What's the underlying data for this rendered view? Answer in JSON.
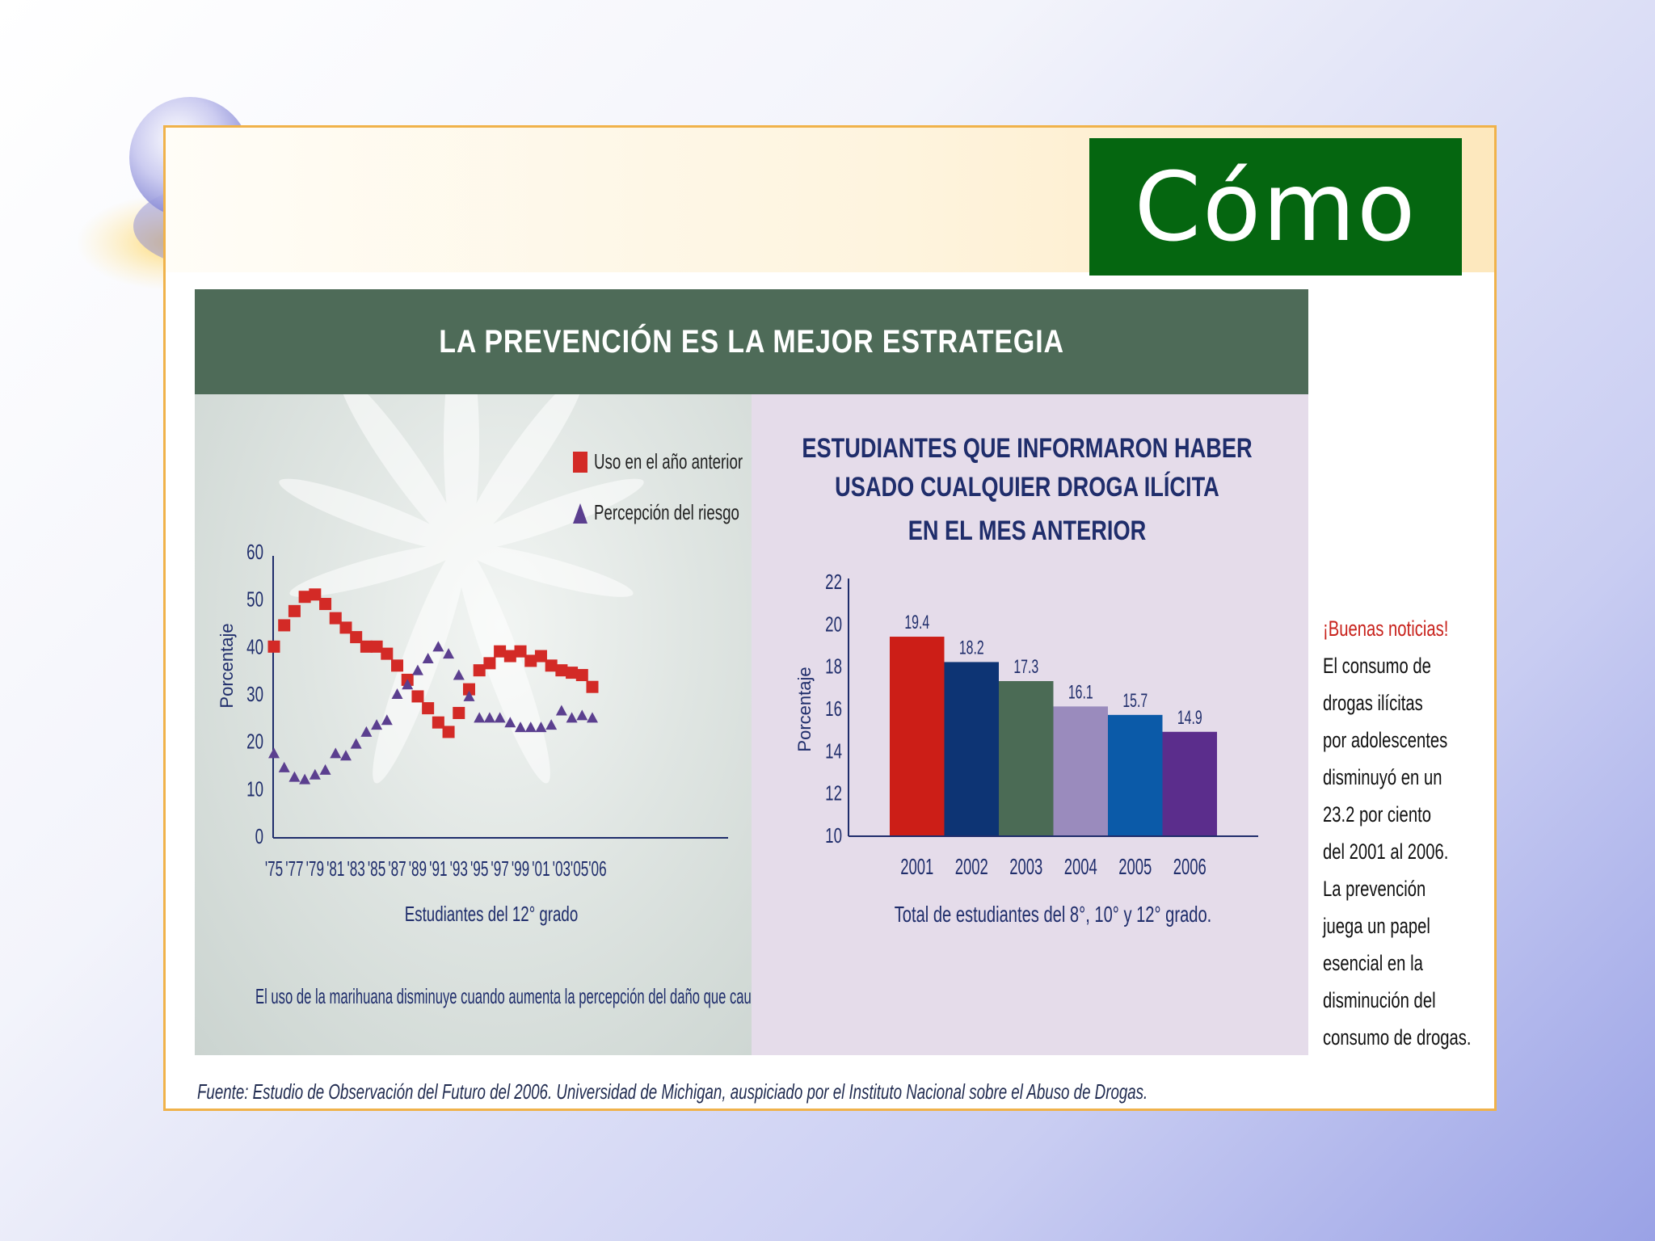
{
  "slide": {
    "title": "Cómo",
    "banner": "LA PREVENCIÓN ES LA MEJOR ESTRATEGIA",
    "source": "Fuente: Estudio de Observación del Futuro del 2006. Universidad de Michigan, auspiciado por el Instituto Nacional sobre el Abuso de Drogas."
  },
  "news": {
    "headline": "¡Buenas noticias!",
    "lines": [
      "El consumo de",
      "drogas ilícitas",
      "por adolescentes",
      "disminuyó en un",
      "23.2 por ciento",
      "del 2001 al 2006.",
      "La prevención",
      "juega un papel",
      "esencial en la",
      "disminución del",
      "consumo de drogas."
    ]
  },
  "colors": {
    "title_bg": "#056610",
    "banner_bg": "#4e6b58",
    "use_series": "#d32a26",
    "risk_series": "#5b3f8f",
    "axis": "#1f2d6b"
  },
  "chart_data": [
    {
      "type": "line",
      "title": "",
      "xlabel": "Estudiantes del 12° grado",
      "ylabel": "Porcentaje",
      "caption": "El uso de la marihuana disminuye cuando aumenta la percepción del daño que causa.",
      "ylim": [
        0,
        60
      ],
      "yticks": [
        0,
        10,
        20,
        30,
        40,
        50,
        60
      ],
      "xtick_labels": [
        "'75",
        "'77",
        "'79",
        "'81",
        "'83",
        "'85",
        "'87",
        "'89",
        "'91",
        "'93",
        "'95",
        "'97",
        "'99",
        "'01",
        "'03",
        "'05'06"
      ],
      "legend_position": "top-right",
      "x": [
        1975,
        1976,
        1977,
        1978,
        1979,
        1980,
        1981,
        1982,
        1983,
        1984,
        1985,
        1986,
        1987,
        1988,
        1989,
        1990,
        1991,
        1992,
        1993,
        1994,
        1995,
        1996,
        1997,
        1998,
        1999,
        2000,
        2001,
        2002,
        2003,
        2004,
        2005,
        2006
      ],
      "series": [
        {
          "name": "Uso en el año anterior",
          "marker": "square",
          "values": [
            40,
            44.5,
            47.5,
            50.5,
            51,
            49,
            46,
            44,
            42,
            40,
            40,
            38.5,
            36,
            33,
            29.5,
            27,
            24,
            22,
            26,
            31,
            35,
            36.5,
            39,
            38,
            39,
            37,
            38,
            36,
            35,
            34.5,
            34,
            31.5
          ]
        },
        {
          "name": "Percepción del riesgo",
          "marker": "triangle",
          "values": [
            17.5,
            14.5,
            12.5,
            12,
            13,
            14,
            17.5,
            17,
            19.5,
            22,
            23.5,
            24.5,
            30,
            32,
            35,
            37.5,
            40,
            38.5,
            34,
            29.5,
            25,
            25,
            25,
            24,
            23,
            23,
            23,
            23.5,
            26.5,
            25,
            25.5,
            25
          ]
        }
      ]
    },
    {
      "type": "bar",
      "title": "ESTUDIANTES QUE INFORMARON HABER USADO CUALQUIER DROGA ILÍCITA EN EL MES ANTERIOR",
      "title_lines": [
        "ESTUDIANTES QUE INFORMARON HABER",
        "USADO CUALQUIER DROGA ILÍCITA",
        "EN EL MES ANTERIOR"
      ],
      "xlabel": "Total de estudiantes del 8°, 10° y 12° grado.",
      "ylabel": "Porcentaje",
      "ylim": [
        10,
        22
      ],
      "yticks": [
        10,
        12,
        14,
        16,
        18,
        20,
        22
      ],
      "categories": [
        "2001",
        "2002",
        "2003",
        "2004",
        "2005",
        "2006"
      ],
      "values": [
        19.4,
        18.2,
        17.3,
        16.1,
        15.7,
        14.9
      ],
      "bar_colors": [
        "#cc1e17",
        "#0d3474",
        "#4b6b55",
        "#9a8bbd",
        "#0b5aa8",
        "#5b2d8c"
      ]
    }
  ]
}
